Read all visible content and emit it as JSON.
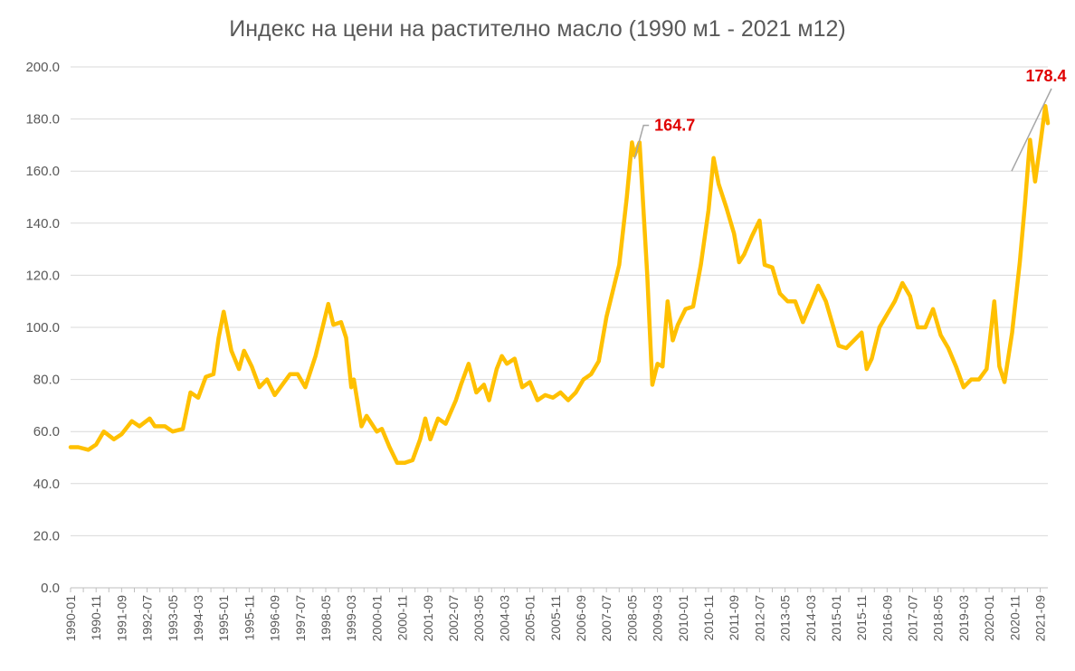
{
  "chart_data": {
    "type": "line",
    "title": "Индекс на цени на растително масло (1990 м1 - 2021 м12)",
    "xlabel": "",
    "ylabel": "",
    "ylim": [
      0,
      200
    ],
    "yticks": [
      "0.0",
      "20.0",
      "40.0",
      "60.0",
      "80.0",
      "100.0",
      "120.0",
      "140.0",
      "160.0",
      "180.0",
      "200.0"
    ],
    "xtick_labels": [
      "1990-01",
      "1990-11",
      "1991-09",
      "1992-07",
      "1993-05",
      "1994-03",
      "1995-01",
      "1995-11",
      "1996-09",
      "1997-07",
      "1998-05",
      "1999-03",
      "2000-01",
      "2000-11",
      "2001-09",
      "2002-07",
      "2003-05",
      "2004-03",
      "2005-01",
      "2005-11",
      "2006-09",
      "2007-07",
      "2008-05",
      "2009-03",
      "2010-01",
      "2010-11",
      "2011-09",
      "2012-07",
      "2013-05",
      "2014-03",
      "2015-01",
      "2015-11",
      "2016-09",
      "2017-07",
      "2018-05",
      "2019-03",
      "2020-01",
      "2020-11",
      "2021-09"
    ],
    "grid": "horizontal",
    "legend": "none",
    "series_color": "#FFC000",
    "annotations": [
      {
        "label": "164.7",
        "x": "2008-06",
        "y": 164.7,
        "color": "#E00000"
      },
      {
        "label": "178.4",
        "x": "2021-12",
        "y": 178.4,
        "color": "#E00000"
      }
    ],
    "points": [
      [
        "1990-01",
        54
      ],
      [
        "1990-04",
        54
      ],
      [
        "1990-08",
        53
      ],
      [
        "1990-11",
        55
      ],
      [
        "1991-02",
        60
      ],
      [
        "1991-06",
        57
      ],
      [
        "1991-09",
        59
      ],
      [
        "1992-01",
        64
      ],
      [
        "1992-04",
        62
      ],
      [
        "1992-08",
        65
      ],
      [
        "1992-10",
        62
      ],
      [
        "1993-02",
        62
      ],
      [
        "1993-05",
        60
      ],
      [
        "1993-09",
        61
      ],
      [
        "1993-12",
        75
      ],
      [
        "1994-03",
        73
      ],
      [
        "1994-06",
        81
      ],
      [
        "1994-09",
        82
      ],
      [
        "1994-11",
        96
      ],
      [
        "1995-01",
        106
      ],
      [
        "1995-04",
        91
      ],
      [
        "1995-07",
        84
      ],
      [
        "1995-09",
        91
      ],
      [
        "1995-12",
        85
      ],
      [
        "1996-03",
        77
      ],
      [
        "1996-06",
        80
      ],
      [
        "1996-09",
        74
      ],
      [
        "1996-12",
        78
      ],
      [
        "1997-03",
        82
      ],
      [
        "1997-06",
        82
      ],
      [
        "1997-09",
        77
      ],
      [
        "1998-01",
        89
      ],
      [
        "1998-04",
        101
      ],
      [
        "1998-06",
        109
      ],
      [
        "1998-08",
        101
      ],
      [
        "1998-11",
        102
      ],
      [
        "1999-01",
        96
      ],
      [
        "1999-03",
        77
      ],
      [
        "1999-04",
        80
      ],
      [
        "1999-07",
        62
      ],
      [
        "1999-09",
        66
      ],
      [
        "2000-01",
        60
      ],
      [
        "2000-03",
        61
      ],
      [
        "2000-06",
        54
      ],
      [
        "2000-09",
        48
      ],
      [
        "2000-12",
        48
      ],
      [
        "2001-03",
        49
      ],
      [
        "2001-06",
        57
      ],
      [
        "2001-08",
        65
      ],
      [
        "2001-10",
        57
      ],
      [
        "2002-01",
        65
      ],
      [
        "2002-04",
        63
      ],
      [
        "2002-08",
        72
      ],
      [
        "2002-10",
        78
      ],
      [
        "2003-01",
        86
      ],
      [
        "2003-04",
        75
      ],
      [
        "2003-07",
        78
      ],
      [
        "2003-09",
        72
      ],
      [
        "2003-12",
        84
      ],
      [
        "2004-02",
        89
      ],
      [
        "2004-04",
        86
      ],
      [
        "2004-07",
        88
      ],
      [
        "2004-10",
        77
      ],
      [
        "2005-01",
        79
      ],
      [
        "2005-04",
        72
      ],
      [
        "2005-07",
        74
      ],
      [
        "2005-10",
        73
      ],
      [
        "2006-01",
        75
      ],
      [
        "2006-04",
        72
      ],
      [
        "2006-07",
        75
      ],
      [
        "2006-10",
        80
      ],
      [
        "2007-01",
        82
      ],
      [
        "2007-04",
        87
      ],
      [
        "2007-07",
        104
      ],
      [
        "2007-12",
        124
      ],
      [
        "2008-03",
        150
      ],
      [
        "2008-05",
        171
      ],
      [
        "2008-06",
        166
      ],
      [
        "2008-08",
        171
      ],
      [
        "2008-11",
        120
      ],
      [
        "2009-01",
        78
      ],
      [
        "2009-03",
        86
      ],
      [
        "2009-05",
        85
      ],
      [
        "2009-07",
        110
      ],
      [
        "2009-09",
        95
      ],
      [
        "2009-11",
        101
      ],
      [
        "2010-02",
        107
      ],
      [
        "2010-05",
        108
      ],
      [
        "2010-08",
        124
      ],
      [
        "2010-11",
        145
      ],
      [
        "2011-01",
        165
      ],
      [
        "2011-03",
        155
      ],
      [
        "2011-06",
        146
      ],
      [
        "2011-09",
        136
      ],
      [
        "2011-11",
        125
      ],
      [
        "2012-01",
        128
      ],
      [
        "2012-04",
        135
      ],
      [
        "2012-07",
        141
      ],
      [
        "2012-09",
        124
      ],
      [
        "2012-12",
        123
      ],
      [
        "2013-03",
        113
      ],
      [
        "2013-06",
        110
      ],
      [
        "2013-09",
        110
      ],
      [
        "2013-12",
        102
      ],
      [
        "2014-03",
        109
      ],
      [
        "2014-06",
        116
      ],
      [
        "2014-09",
        110
      ],
      [
        "2014-12",
        100
      ],
      [
        "2015-02",
        93
      ],
      [
        "2015-05",
        92
      ],
      [
        "2015-08",
        95
      ],
      [
        "2015-11",
        98
      ],
      [
        "2016-01",
        84
      ],
      [
        "2016-03",
        88
      ],
      [
        "2016-06",
        100
      ],
      [
        "2016-09",
        105
      ],
      [
        "2016-12",
        110
      ],
      [
        "2017-03",
        117
      ],
      [
        "2017-06",
        112
      ],
      [
        "2017-09",
        100
      ],
      [
        "2017-12",
        100
      ],
      [
        "2018-03",
        107
      ],
      [
        "2018-06",
        97
      ],
      [
        "2018-09",
        92
      ],
      [
        "2018-12",
        85
      ],
      [
        "2019-03",
        77
      ],
      [
        "2019-06",
        80
      ],
      [
        "2019-09",
        80
      ],
      [
        "2019-12",
        84
      ],
      [
        "2020-03",
        110
      ],
      [
        "2020-05",
        85
      ],
      [
        "2020-07",
        79
      ],
      [
        "2020-10",
        98
      ],
      [
        "2021-01",
        125
      ],
      [
        "2021-03",
        147
      ],
      [
        "2021-05",
        172
      ],
      [
        "2021-07",
        156
      ],
      [
        "2021-09",
        170
      ],
      [
        "2021-11",
        185
      ],
      [
        "2021-12",
        178.4
      ]
    ]
  }
}
